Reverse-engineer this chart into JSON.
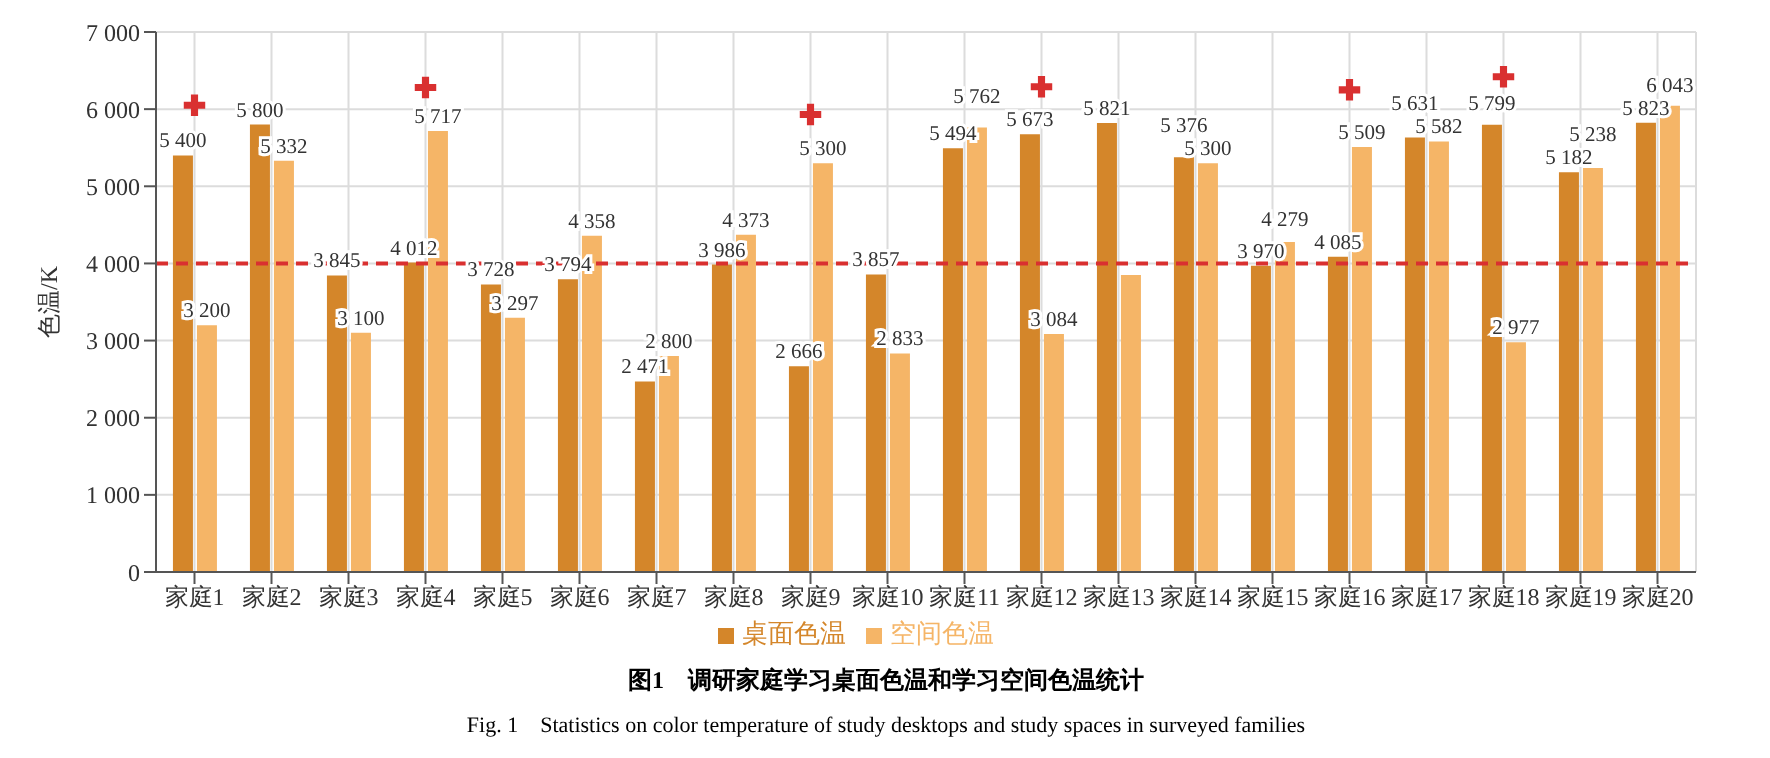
{
  "chart_data": {
    "type": "bar",
    "title": "图1　调研家庭学习桌面色温和学习空间色温统计",
    "subtitle": "Fig. 1　Statistics on color temperature of study desktops and study spaces in surveyed families",
    "ylabel": "色温/K",
    "categories": [
      "家庭1",
      "家庭2",
      "家庭3",
      "家庭4",
      "家庭5",
      "家庭6",
      "家庭7",
      "家庭8",
      "家庭9",
      "家庭10",
      "家庭11",
      "家庭12",
      "家庭13",
      "家庭14",
      "家庭15",
      "家庭16",
      "家庭17",
      "家庭18",
      "家庭19",
      "家庭20"
    ],
    "series": [
      {
        "name": "桌面色温",
        "color": "#d4862a",
        "values": [
          5400,
          5800,
          3845,
          4012,
          3728,
          3794,
          2471,
          3986,
          2666,
          3857,
          5494,
          5673,
          5821,
          5376,
          3970,
          4085,
          5631,
          5799,
          5182,
          5823
        ],
        "value_labels": [
          "5 400",
          "5 800",
          "3 845",
          "4 012",
          "3 728",
          "3 794",
          "2 471",
          "3 986",
          "2 666",
          "3 857",
          "5 494",
          "5 673",
          "5 821",
          "5 376",
          "3 970",
          "4 085",
          "5 631",
          "5 799",
          "5 182",
          "5 823"
        ]
      },
      {
        "name": "空间色温",
        "color": "#f5b567",
        "values": [
          3200,
          5332,
          3100,
          5717,
          3297,
          4358,
          2800,
          4373,
          5300,
          2833,
          5762,
          3084,
          3850,
          5300,
          4279,
          5509,
          5582,
          2977,
          5238,
          6043
        ],
        "value_labels": [
          "3 200",
          "5 332",
          "3 100",
          "5 717",
          "3 297",
          "4 358",
          "2 800",
          "4 373",
          "5 300",
          "2 833",
          "5 762",
          "3 084",
          null,
          "5 300",
          "4 279",
          "5 509",
          "5 582",
          "2 977",
          "5 238",
          "6 043"
        ]
      },
      {
        "type": "scatter",
        "color": "#d93030",
        "marker": "cross",
        "values": [
          6050,
          null,
          null,
          6280,
          null,
          null,
          null,
          null,
          5930,
          null,
          null,
          6290,
          null,
          null,
          null,
          6250,
          null,
          6420,
          null,
          null
        ]
      }
    ],
    "ylim": [
      0,
      7000
    ],
    "yticks": [
      0,
      {
        "value": 1000,
        "label": "1 000"
      },
      {
        "value": 2000,
        "label": "2 000"
      },
      {
        "value": 3000,
        "label": "3 000"
      },
      {
        "value": 4000,
        "label": "4 000"
      },
      {
        "value": 5000,
        "label": "5 000"
      },
      {
        "value": 6000,
        "label": "6 000"
      },
      {
        "value": 7000,
        "label": "7 000"
      }
    ],
    "ref_lines": [
      {
        "axis": "y",
        "value": 4000,
        "color": "#d93030",
        "line_style": "dashed"
      }
    ],
    "grid": true,
    "legend": "bottom"
  }
}
